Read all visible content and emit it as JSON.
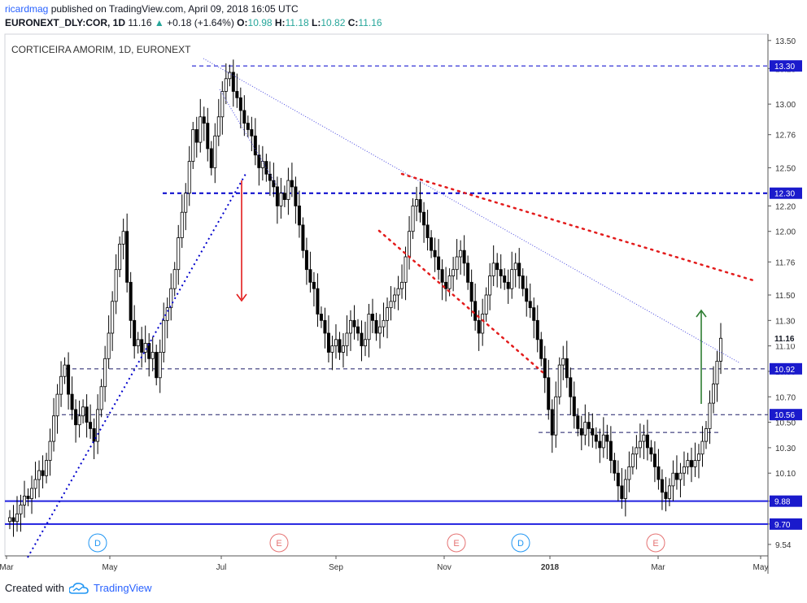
{
  "header": {
    "user": "ricardmag",
    "published": "published on TradingView.com, April 09, 2018 16:05 UTC",
    "symbol": "EURONEXT_DLY:COR, 1D",
    "last": "11.16",
    "change": "+0.18 (+1.64%)",
    "o_label": "O:",
    "o_val": "10.98",
    "h_label": "H:",
    "h_val": "11.18",
    "l_label": "L:",
    "l_val": "10.82",
    "c_label": "C:",
    "c_val": "11.16"
  },
  "footer": {
    "created_with": "Created with",
    "brand": "TradingView"
  },
  "colors": {
    "candle": "#000000",
    "blue_line": "#0000cc",
    "blue_solid": "#2020e0",
    "red_dots": "#e31c1c",
    "red_arrow": "#e31c1c",
    "green_arrow": "#2e7d32",
    "price_label_bg": "#1a1acc",
    "event_d": "#2196f3",
    "event_e": "#e57373"
  },
  "chart_data": {
    "type": "candlestick",
    "title": "CORTICEIRA AMORIM, 1D, EURONEXT",
    "y_ticks": [
      "13.50",
      "13.28",
      "13.00",
      "12.76",
      "12.50",
      "12.20",
      "12.00",
      "11.76",
      "11.50",
      "11.30",
      "11.10",
      "10.90",
      "10.70",
      "10.50",
      "10.30",
      "10.10",
      "9.88",
      "9.70",
      "9.54"
    ],
    "y_range": [
      9.45,
      13.55
    ],
    "x_ticks": [
      "Mar",
      "May",
      "Jul",
      "Sep",
      "Nov",
      "2018",
      "Mar",
      "May"
    ],
    "price_labels": [
      {
        "label": "13.30",
        "value": 13.3,
        "style": "blue"
      },
      {
        "label": "12.30",
        "value": 12.3,
        "style": "blue"
      },
      {
        "label": "11.16",
        "value": 11.16,
        "style": "plain"
      },
      {
        "label": "10.92",
        "value": 10.92,
        "style": "blue"
      },
      {
        "label": "10.56",
        "value": 10.56,
        "style": "blue"
      },
      {
        "label": "9.88",
        "value": 9.88,
        "style": "blue"
      },
      {
        "label": "9.70",
        "value": 9.7,
        "style": "blue"
      }
    ],
    "horizontal_levels": [
      {
        "value": 13.3,
        "style": "dashed"
      },
      {
        "value": 12.3,
        "style": "dashed-bold"
      },
      {
        "value": 10.92,
        "style": "dashed"
      },
      {
        "value": 10.56,
        "style": "dashed"
      },
      {
        "value": 10.42,
        "style": "dashed-short"
      },
      {
        "value": 9.88,
        "style": "solid"
      },
      {
        "value": 9.7,
        "style": "solid"
      }
    ],
    "events": [
      {
        "label": "D"
      },
      {
        "label": "E"
      },
      {
        "label": "E"
      },
      {
        "label": "D"
      },
      {
        "label": "E"
      }
    ],
    "close_series": [
      9.75,
      9.72,
      9.78,
      9.85,
      9.92,
      9.9,
      9.98,
      10.05,
      10.12,
      10.08,
      10.2,
      10.35,
      10.55,
      10.72,
      10.86,
      10.95,
      10.72,
      10.6,
      10.48,
      10.55,
      10.62,
      10.5,
      10.45,
      10.35,
      10.6,
      10.78,
      11.0,
      11.2,
      11.45,
      11.7,
      11.9,
      12.0,
      11.6,
      11.3,
      11.1,
      11.15,
      11.05,
      11.12,
      11.0,
      11.05,
      10.85,
      11.05,
      11.3,
      11.4,
      11.55,
      11.7,
      11.95,
      12.15,
      12.3,
      12.55,
      12.8,
      12.7,
      12.9,
      12.85,
      12.65,
      12.5,
      12.75,
      12.9,
      13.1,
      13.2,
      13.25,
      13.1,
      13.05,
      12.95,
      12.85,
      12.8,
      12.75,
      12.6,
      12.5,
      12.55,
      12.45,
      12.4,
      12.35,
      12.2,
      12.3,
      12.25,
      12.4,
      12.35,
      12.2,
      12.05,
      11.85,
      11.7,
      11.6,
      11.55,
      11.35,
      11.3,
      11.2,
      11.05,
      11.1,
      11.15,
      11.05,
      11.1,
      11.2,
      11.3,
      11.25,
      11.2,
      11.1,
      11.15,
      11.35,
      11.3,
      11.2,
      11.25,
      11.3,
      11.4,
      11.45,
      11.5,
      11.55,
      11.6,
      11.8,
      12.0,
      12.2,
      12.25,
      12.15,
      12.05,
      11.95,
      11.85,
      11.8,
      11.7,
      11.6,
      11.55,
      11.65,
      11.7,
      11.8,
      11.85,
      11.75,
      11.6,
      11.45,
      11.3,
      11.2,
      11.35,
      11.5,
      11.65,
      11.75,
      11.7,
      11.65,
      11.6,
      11.55,
      11.7,
      11.75,
      11.65,
      11.55,
      11.45,
      11.4,
      11.3,
      11.15,
      11.0,
      10.85,
      10.6,
      10.4,
      10.7,
      10.95,
      11.0,
      10.85,
      10.7,
      10.55,
      10.45,
      10.4,
      10.5,
      10.45,
      10.4,
      10.35,
      10.3,
      10.4,
      10.35,
      10.2,
      10.1,
      10.0,
      9.9,
      10.05,
      10.15,
      10.25,
      10.3,
      10.35,
      10.4,
      10.3,
      10.25,
      10.15,
      10.05,
      9.95,
      9.9,
      10.0,
      10.1,
      10.05,
      10.1,
      10.15,
      10.2,
      10.15,
      10.2,
      10.25,
      10.35,
      10.45,
      10.65,
      10.8,
      10.98,
      11.16
    ]
  }
}
